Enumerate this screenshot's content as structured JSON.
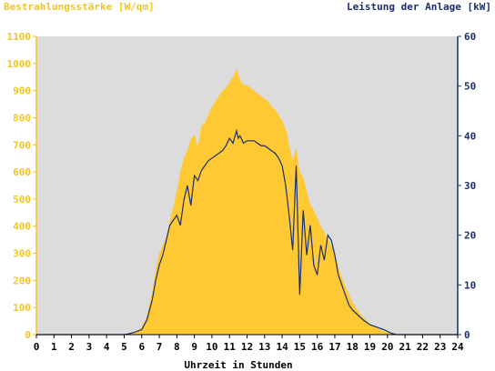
{
  "chart_data": {
    "type": "area",
    "y_left_label": "Bestrahlungsstärke [W/qm]",
    "y_right_label": "Leistung der Anlage [kW]",
    "xlabel": "Uhrzeit in Stunden",
    "xlim": [
      0,
      24
    ],
    "ylim_left": [
      0,
      1100
    ],
    "ylim_right": [
      0,
      60
    ],
    "x_ticks": [
      "0",
      "1",
      "2",
      "3",
      "4",
      "5",
      "6",
      "7",
      "8",
      "9",
      "10",
      "11",
      "12",
      "13",
      "14",
      "15",
      "16",
      "17",
      "18",
      "19",
      "20",
      "21",
      "22",
      "23",
      "24"
    ],
    "y_left_ticks": [
      "0",
      "100",
      "200",
      "300",
      "400",
      "500",
      "600",
      "700",
      "800",
      "900",
      "1000",
      "1100"
    ],
    "y_right_ticks": [
      "0",
      "10",
      "20",
      "30",
      "40",
      "50",
      "60"
    ],
    "colors": {
      "irradiance": "#ffc933",
      "power": "#1a2f6e",
      "plot_bg": "#dcdcdc",
      "left_axis": "#f5c51f",
      "right_axis": "#1a2f6e"
    },
    "series": [
      {
        "name": "Bestrahlungsstärke [W/qm]",
        "axis": "left",
        "type": "area",
        "x": [
          0,
          5.0,
          5.3,
          5.6,
          6.0,
          6.3,
          6.6,
          6.8,
          7.0,
          7.2,
          7.4,
          7.6,
          7.8,
          8.0,
          8.2,
          8.4,
          8.6,
          8.8,
          9.0,
          9.2,
          9.4,
          9.6,
          9.8,
          10.0,
          10.2,
          10.4,
          10.6,
          10.8,
          11.0,
          11.2,
          11.4,
          11.5,
          11.6,
          11.8,
          12.0,
          12.2,
          12.4,
          12.6,
          12.8,
          13.0,
          13.2,
          13.4,
          13.6,
          13.8,
          14.0,
          14.2,
          14.4,
          14.6,
          14.8,
          15.0,
          15.2,
          15.4,
          15.6,
          15.8,
          16.0,
          16.2,
          16.4,
          16.6,
          16.8,
          17.0,
          17.2,
          17.4,
          17.6,
          17.8,
          18.0,
          18.3,
          18.6,
          19.0,
          19.4,
          19.8,
          20.2,
          20.5,
          21,
          24
        ],
        "values": [
          0,
          0,
          5,
          10,
          25,
          70,
          160,
          240,
          300,
          330,
          360,
          420,
          470,
          530,
          600,
          650,
          680,
          720,
          740,
          690,
          770,
          780,
          810,
          840,
          860,
          880,
          900,
          910,
          930,
          950,
          980,
          960,
          940,
          920,
          920,
          910,
          900,
          890,
          880,
          870,
          860,
          840,
          830,
          810,
          790,
          760,
          700,
          640,
          690,
          600,
          580,
          530,
          480,
          460,
          430,
          400,
          380,
          350,
          330,
          300,
          250,
          210,
          180,
          150,
          120,
          90,
          65,
          40,
          25,
          12,
          4,
          0,
          0,
          0
        ]
      },
      {
        "name": "Leistung der Anlage [kW]",
        "axis": "right",
        "type": "line",
        "x": [
          0,
          5.0,
          5.3,
          5.6,
          6.0,
          6.3,
          6.6,
          6.8,
          7.0,
          7.2,
          7.4,
          7.6,
          7.8,
          8.0,
          8.2,
          8.4,
          8.6,
          8.8,
          9.0,
          9.2,
          9.4,
          9.6,
          9.8,
          10.0,
          10.2,
          10.4,
          10.6,
          10.8,
          11.0,
          11.2,
          11.4,
          11.5,
          11.6,
          11.8,
          12.0,
          12.2,
          12.4,
          12.6,
          12.8,
          13.0,
          13.2,
          13.4,
          13.6,
          13.8,
          14.0,
          14.2,
          14.4,
          14.6,
          14.8,
          15.0,
          15.2,
          15.4,
          15.6,
          15.8,
          16.0,
          16.2,
          16.4,
          16.6,
          16.8,
          17.0,
          17.2,
          17.4,
          17.6,
          17.8,
          18.0,
          18.3,
          18.6,
          19.0,
          19.4,
          19.8,
          20.2,
          20.5,
          21,
          24
        ],
        "values": [
          0,
          0,
          0.2,
          0.5,
          1.0,
          3.0,
          7.0,
          11.0,
          14.0,
          16.0,
          19.0,
          22.0,
          23.0,
          24.0,
          22.0,
          27.0,
          30.0,
          26.0,
          32.0,
          31.0,
          33.0,
          34.0,
          35.0,
          35.5,
          36.0,
          36.5,
          37.0,
          38.0,
          39.5,
          38.5,
          41.0,
          39.5,
          40.0,
          38.5,
          39.0,
          39.0,
          39.0,
          38.5,
          38.0,
          38.0,
          37.5,
          37.0,
          36.5,
          35.5,
          34.0,
          30.0,
          24.0,
          17.0,
          34.0,
          8.0,
          25.0,
          16.0,
          22.0,
          14.0,
          12.0,
          18.0,
          15.0,
          20.0,
          19.0,
          16.0,
          12.0,
          10.0,
          8.0,
          6.0,
          5.0,
          4.0,
          3.0,
          2.0,
          1.5,
          1.0,
          0.3,
          0,
          0,
          0
        ]
      }
    ]
  }
}
